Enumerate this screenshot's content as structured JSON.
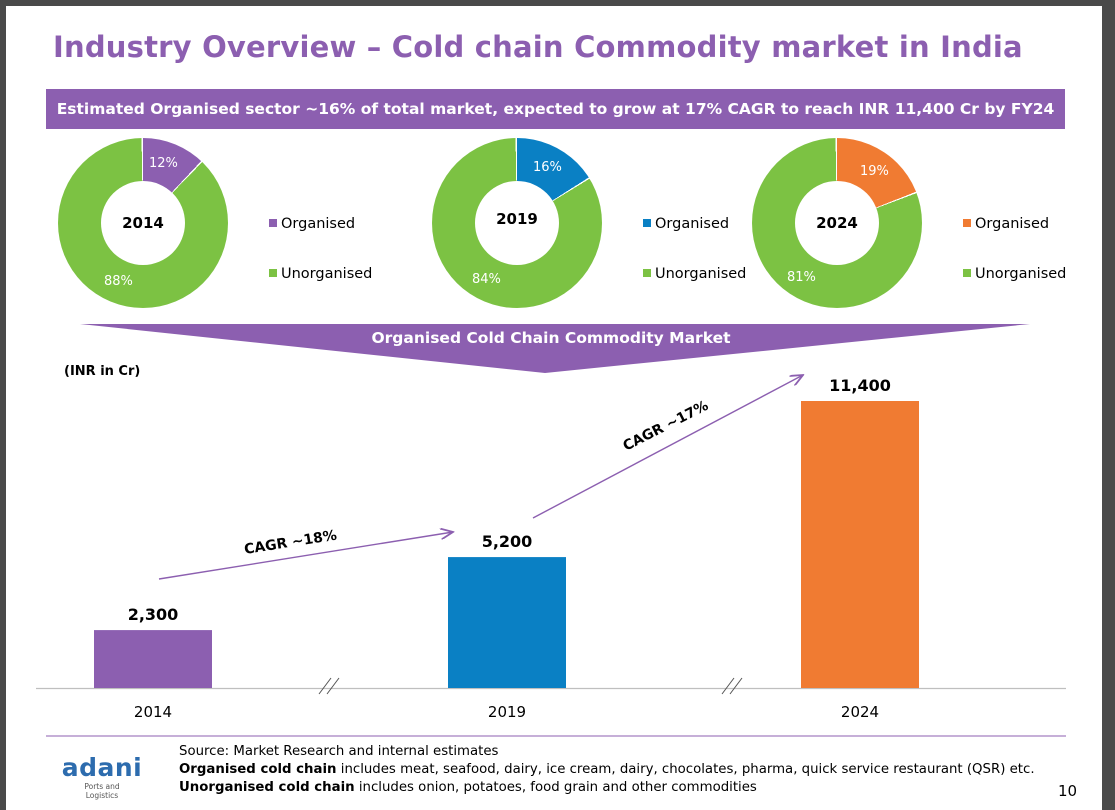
{
  "title": "Industry Overview – Cold chain Commodity market in India",
  "banner": "Estimated Organised sector ~16% of total market, expected to grow at 17% CAGR to reach INR 11,400 Cr by FY24",
  "donuts": [
    {
      "year": "2014",
      "organised_label": "12%",
      "unorganised_label": "88%",
      "organised_pct": 12,
      "color": "#8c5fb0"
    },
    {
      "year": "2019",
      "organised_label": "16%",
      "unorganised_label": "84%",
      "organised_pct": 16,
      "color": "#0a80c4"
    },
    {
      "year": "2024",
      "organised_label": "19%",
      "unorganised_label": "81%",
      "organised_pct": 19,
      "color": "#f07b32"
    }
  ],
  "legend": {
    "organised": "Organised",
    "unorganised": "Unorganised"
  },
  "unorganised_color": "#7cc243",
  "funnel_label": "Organised Cold Chain Commodity Market",
  "unit": "(INR in Cr)",
  "chart_data": {
    "type": "bar",
    "categories": [
      "2014",
      "2019",
      "2024"
    ],
    "values": [
      2300,
      5200,
      11400
    ],
    "value_labels": [
      "2,300",
      "5,200",
      "11,400"
    ],
    "colors": [
      "#8c5fb0",
      "#0a80c4",
      "#f07b32"
    ],
    "ylabel": "(INR in Cr)",
    "ylim": [
      0,
      12600
    ],
    "annotations": [
      "CAGR ~18%",
      "CAGR ~17%"
    ]
  },
  "source": {
    "line1": "Source: Market Research and internal estimates",
    "line2_bold": "Organised cold chain",
    "line2_rest": " includes meat, seafood, dairy, ice cream, dairy, chocolates, pharma, quick service restaurant (QSR) etc.",
    "line3_bold": "Unorganised cold chain",
    "line3_rest": " includes onion, potatoes, food grain and other commodities"
  },
  "logo": {
    "word": "adani",
    "sub1": "Ports and",
    "sub2": "Logistics"
  },
  "page_number": "10"
}
